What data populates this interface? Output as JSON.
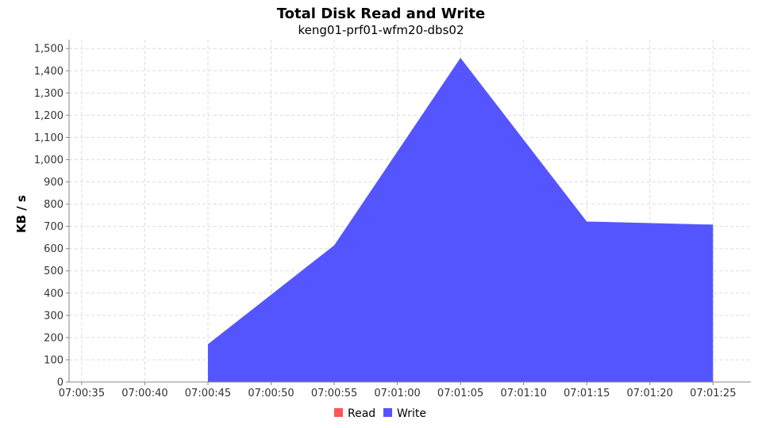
{
  "chart_data": {
    "type": "area",
    "title": "Total Disk Read and Write",
    "subtitle": "keng01-prf01-wfm20-dbs02",
    "xlabel": "",
    "ylabel": "KB / s",
    "x_ticks": [
      "07:00:35",
      "07:00:40",
      "07:00:45",
      "07:00:50",
      "07:00:55",
      "07:01:00",
      "07:01:05",
      "07:01:10",
      "07:01:15",
      "07:01:20",
      "07:01:25"
    ],
    "y_ticks": [
      "0",
      "100",
      "200",
      "300",
      "400",
      "500",
      "600",
      "700",
      "800",
      "900",
      "1,000",
      "1,100",
      "1,200",
      "1,300",
      "1,400",
      "1,500"
    ],
    "xlim": [
      "07:00:34",
      "07:01:28"
    ],
    "ylim": [
      0,
      1540
    ],
    "grid": true,
    "legend_position": "bottom",
    "series": [
      {
        "name": "Read",
        "color": "#ff5555",
        "points": [
          {
            "x": "07:00:45",
            "y": 0
          },
          {
            "x": "07:00:55",
            "y": 0
          },
          {
            "x": "07:01:05",
            "y": 0
          },
          {
            "x": "07:01:15",
            "y": 0
          },
          {
            "x": "07:01:25",
            "y": 0
          }
        ]
      },
      {
        "name": "Write",
        "color": "#5555ff",
        "points": [
          {
            "x": "07:00:45",
            "y": 170
          },
          {
            "x": "07:00:55",
            "y": 615
          },
          {
            "x": "07:01:05",
            "y": 1458
          },
          {
            "x": "07:01:15",
            "y": 722
          },
          {
            "x": "07:01:25",
            "y": 708
          }
        ]
      }
    ]
  }
}
